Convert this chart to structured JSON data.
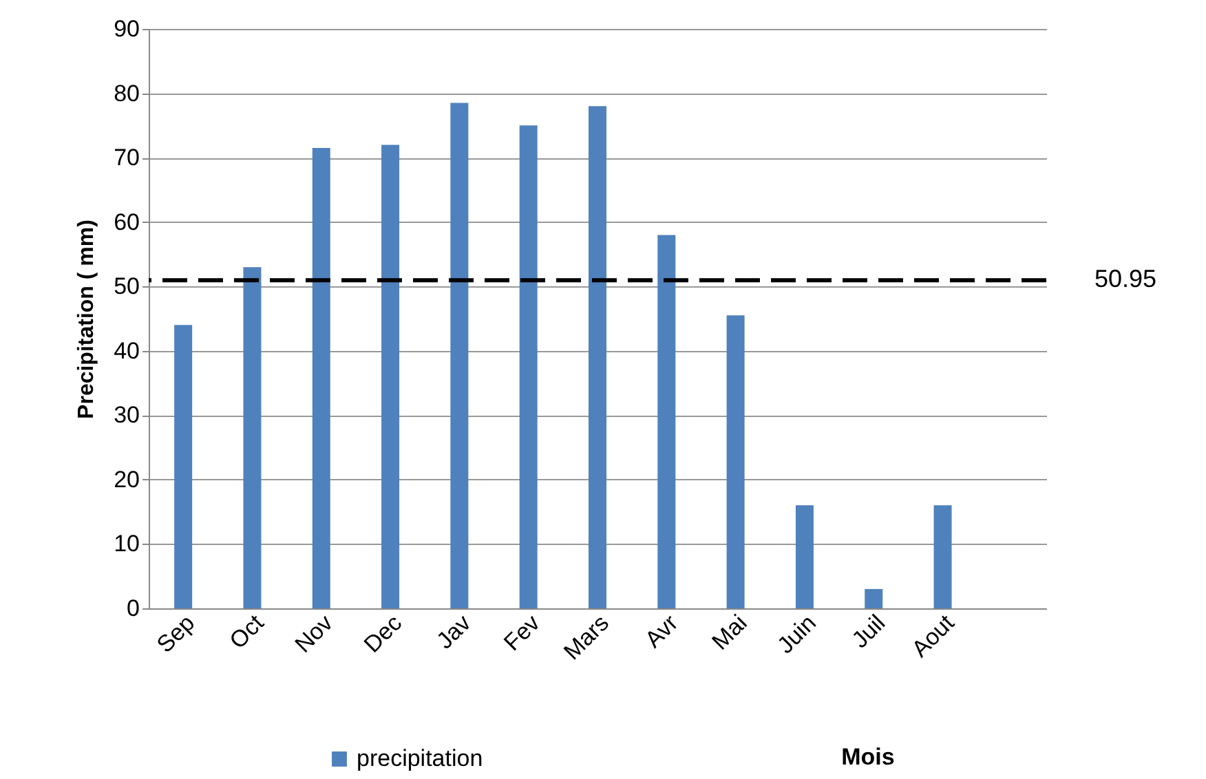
{
  "chart_data": {
    "type": "bar",
    "categories": [
      "Sep",
      "Oct",
      "Nov",
      "Dec",
      "Jav",
      "Fev",
      "Mars",
      "Avr",
      "Mai",
      "Juin",
      "Juil",
      "Aout",
      null
    ],
    "series": [
      {
        "name": "precipitation",
        "color": "#4f81bd",
        "values": [
          44,
          53,
          71.5,
          72,
          78.5,
          75,
          78,
          58,
          45.5,
          16,
          3,
          16,
          null
        ]
      }
    ],
    "xlabel": "Mois",
    "ylabel": "Precipitation ( mm)",
    "ylim": [
      0,
      90
    ],
    "yticks": [
      0,
      10,
      20,
      30,
      40,
      50,
      60,
      70,
      80,
      90
    ],
    "grid": "y",
    "legend": "bottom",
    "ref_lines": [
      {
        "axis": "y",
        "value": 50.95,
        "label": "50.95",
        "color": "#000000",
        "line_style": "dashed"
      }
    ]
  }
}
